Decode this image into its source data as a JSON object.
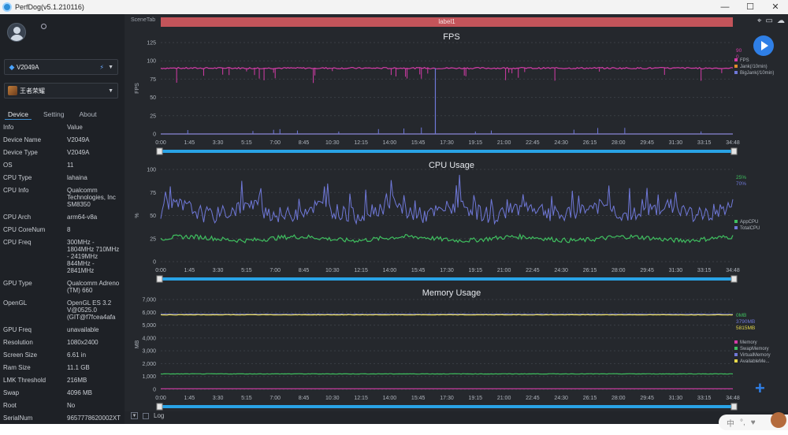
{
  "window": {
    "title": "PerfDog(v5.1.210116)",
    "min": "—",
    "max": "☐",
    "close": "✕"
  },
  "sidebar": {
    "device_selector": "V2049A",
    "app_selector": "王者荣耀",
    "tabs": [
      "Device",
      "Setting",
      "About"
    ],
    "active_tab": "Device",
    "info_header": {
      "key": "Info",
      "value": "Value"
    },
    "info_rows": [
      {
        "k": "Device Name",
        "v": "V2049A"
      },
      {
        "k": "Device Type",
        "v": "V2049A"
      },
      {
        "k": "OS",
        "v": "11"
      },
      {
        "k": "CPU Type",
        "v": "lahaina"
      },
      {
        "k": "CPU Info",
        "v": "Qualcomm Technologies, Inc SM8350"
      },
      {
        "k": "CPU Arch",
        "v": "arm64-v8a"
      },
      {
        "k": "CPU CoreNum",
        "v": "8"
      },
      {
        "k": "CPU Freq",
        "v": "300MHz - 1804MHz 710MHz - 2419MHz 844MHz - 2841MHz"
      },
      {
        "k": "GPU Type",
        "v": "Qualcomm Adreno (TM) 660"
      },
      {
        "k": "OpenGL",
        "v": "OpenGL ES 3.2 V@0525.0 (GIT@f7fcea4afa"
      },
      {
        "k": "GPU Freq",
        "v": "unavailable"
      },
      {
        "k": "Resolution",
        "v": "1080x2400"
      },
      {
        "k": "Screen Size",
        "v": "6.61 in"
      },
      {
        "k": "Ram Size",
        "v": "11.1 GB"
      },
      {
        "k": "LMK Threshold",
        "v": "216MB"
      },
      {
        "k": "Swap",
        "v": "4096 MB"
      },
      {
        "k": "Root",
        "v": "No"
      },
      {
        "k": "SerialNum",
        "v": "9657778620002XT"
      }
    ]
  },
  "main": {
    "scene_tab": "SceneTab",
    "label_bar": "label1",
    "log_label": "Log"
  },
  "colors": {
    "fps": "#d43ca8",
    "cpu_app": "#3fbf5f",
    "cpu_total": "#6f78d8",
    "mem": "#e6d84a",
    "handle": "#29a3e6"
  },
  "icons": [
    "location-icon",
    "folder-icon",
    "cloud-icon",
    "play-icon",
    "plus-icon"
  ],
  "chart_data": [
    {
      "type": "line",
      "title": "FPS",
      "ylabel": "FPS",
      "ylim": [
        0,
        125
      ],
      "yticks": [
        "125",
        "100",
        "75",
        "50",
        "25",
        "0"
      ],
      "xticks": [
        "0:00",
        "1:45",
        "3:30",
        "5:15",
        "7:00",
        "8:45",
        "10:30",
        "12:15",
        "14:00",
        "15:45",
        "17:30",
        "19:15",
        "21:00",
        "22:45",
        "24:30",
        "26:15",
        "28:00",
        "29:45",
        "31:30",
        "33:15",
        "34:48"
      ],
      "series": [
        {
          "name": "FPS",
          "color": "#d43ca8",
          "baseline": 90
        },
        {
          "name": "Jank(/10min)",
          "color": "#e08a2a",
          "baseline": 0
        },
        {
          "name": "BigJank(/10min)",
          "color": "#6f78d8",
          "baseline": 0
        }
      ],
      "current_values": [
        "90",
        "0"
      ]
    },
    {
      "type": "line",
      "title": "CPU Usage",
      "ylabel": "%",
      "ylim": [
        0,
        100
      ],
      "yticks": [
        "100",
        "75",
        "50",
        "25",
        "0"
      ],
      "xticks": [
        "0:00",
        "1:45",
        "3:30",
        "5:15",
        "7:00",
        "8:45",
        "10:30",
        "12:15",
        "14:00",
        "15:45",
        "17:30",
        "19:15",
        "21:00",
        "22:45",
        "24:30",
        "26:15",
        "28:00",
        "29:45",
        "31:30",
        "33:15",
        "34:48"
      ],
      "series": [
        {
          "name": "AppCPU",
          "color": "#3fbf5f",
          "baseline": 25
        },
        {
          "name": "TotalCPU",
          "color": "#6f78d8",
          "baseline": 55
        }
      ],
      "current_values": [
        "25%",
        "70%"
      ]
    },
    {
      "type": "line",
      "title": "Memory Usage",
      "ylabel": "MB",
      "ylim": [
        0,
        7000
      ],
      "yticks": [
        "7,000",
        "6,000",
        "5,000",
        "4,000",
        "3,000",
        "2,000",
        "1,000",
        "0"
      ],
      "xticks": [
        "0:00",
        "1:45",
        "3:30",
        "5:15",
        "7:00",
        "8:45",
        "10:30",
        "12:15",
        "14:00",
        "15:45",
        "17:30",
        "19:15",
        "21:00",
        "22:45",
        "24:30",
        "26:15",
        "28:00",
        "29:45",
        "31:30",
        "33:15",
        "34:48"
      ],
      "series": [
        {
          "name": "Memory",
          "color": "#d43ca8",
          "baseline": 0
        },
        {
          "name": "SwapMemory",
          "color": "#3fbf5f",
          "baseline": 1200
        },
        {
          "name": "VirtualMemory",
          "color": "#6f78d8",
          "baseline": 5850
        },
        {
          "name": "AvailableMe...",
          "color": "#e6d84a",
          "baseline": 5800
        }
      ],
      "current_values": [
        "0MB",
        "3790MB",
        "5815MB"
      ]
    }
  ]
}
